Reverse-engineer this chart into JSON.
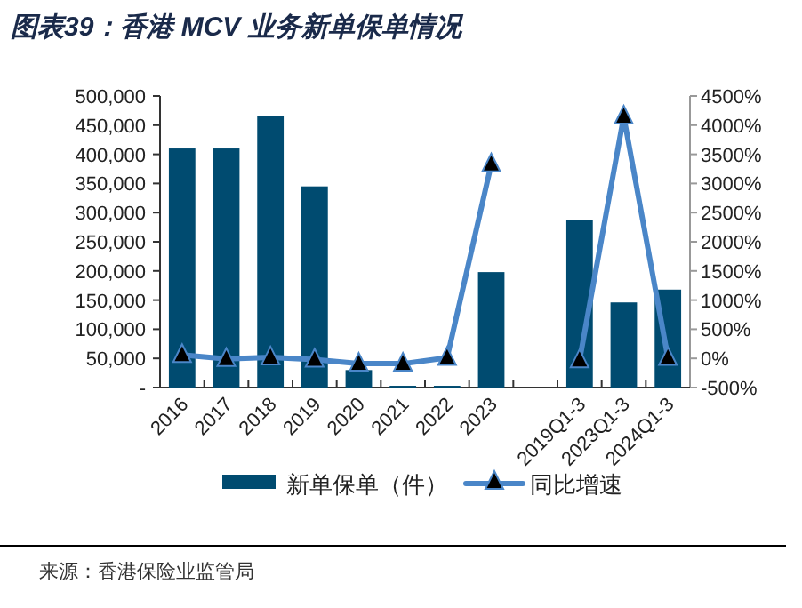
{
  "chart_data": {
    "type": "bar",
    "title": "图表39：香港 MCV 业务新单保单情况",
    "annotations": [
      "来源：香港保险业监管局"
    ],
    "categories": [
      "2016",
      "2017",
      "2018",
      "2019",
      "2020",
      "2021",
      "2022",
      "2023",
      null,
      "2019Q1-3",
      "2023Q1-3",
      "2024Q1-3"
    ],
    "series": [
      {
        "name": "新单保单（件）",
        "color": "#004b70",
        "values": [
          410000,
          410000,
          465000,
          345000,
          30000,
          3000,
          3000,
          198000,
          null,
          287000,
          146000,
          168000
        ]
      },
      {
        "name": "同比增速",
        "type": "line",
        "axis": "y2",
        "color": "#4a86c8",
        "marker": "triangle",
        "values": [
          60,
          -10,
          20,
          -20,
          -90,
          -90,
          10,
          3330,
          null,
          -30,
          4150,
          10
        ]
      }
    ],
    "ylim": [
      0,
      500000
    ],
    "yticks": [
      {
        "value": 0,
        "label": "-"
      },
      {
        "value": 50000,
        "label": "50,000"
      },
      {
        "value": 100000,
        "label": "100,000"
      },
      {
        "value": 150000,
        "label": "150,000"
      },
      {
        "value": 200000,
        "label": "200,000"
      },
      {
        "value": 250000,
        "label": "250,000"
      },
      {
        "value": 300000,
        "label": "300,000"
      },
      {
        "value": 350000,
        "label": "350,000"
      },
      {
        "value": 400000,
        "label": "400,000"
      },
      {
        "value": 450000,
        "label": "450,000"
      },
      {
        "value": 500000,
        "label": "500,000"
      }
    ],
    "y2lim": [
      -500,
      4500
    ],
    "y2ticks": [
      {
        "value": -500,
        "label": "-500%"
      },
      {
        "value": 0,
        "label": "0%"
      },
      {
        "value": 500,
        "label": "500%"
      },
      {
        "value": 1000,
        "label": "1000%"
      },
      {
        "value": 1500,
        "label": "1500%"
      },
      {
        "value": 2000,
        "label": "2000%"
      },
      {
        "value": 2500,
        "label": "2500%"
      },
      {
        "value": 3000,
        "label": "3000%"
      },
      {
        "value": 3500,
        "label": "3500%"
      },
      {
        "value": 4000,
        "label": "4000%"
      },
      {
        "value": 4500,
        "label": "4500%"
      }
    ],
    "legend": "bottom"
  }
}
